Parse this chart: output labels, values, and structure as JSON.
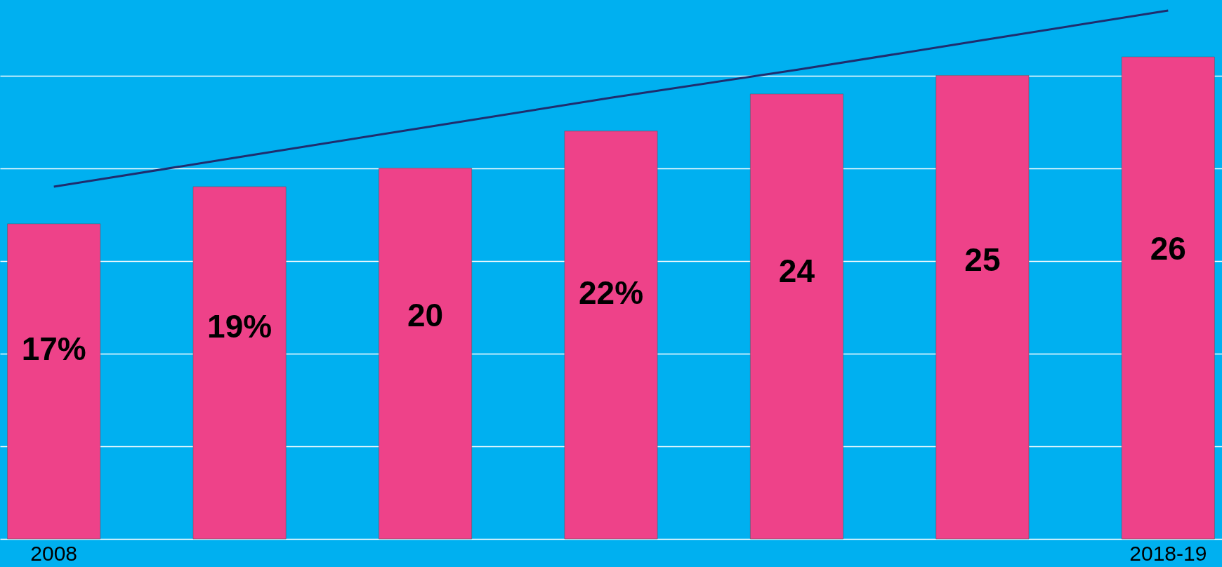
{
  "chart_data": {
    "type": "bar",
    "grid": "y",
    "categories": [
      "2008",
      null,
      null,
      null,
      null,
      null,
      "2018-19"
    ],
    "series": [
      {
        "color": "#ee4289",
        "values": [
          17,
          19,
          20,
          22,
          24,
          25,
          26
        ],
        "value_labels": [
          "17%",
          "19%",
          "20",
          "22%",
          "24",
          "25",
          "26"
        ]
      },
      {
        "type": "line",
        "color": "#1f2d6e",
        "values": [
          19,
          20.6,
          22.2,
          23.8,
          25.3,
          26.9,
          28.5
        ]
      }
    ]
  }
}
